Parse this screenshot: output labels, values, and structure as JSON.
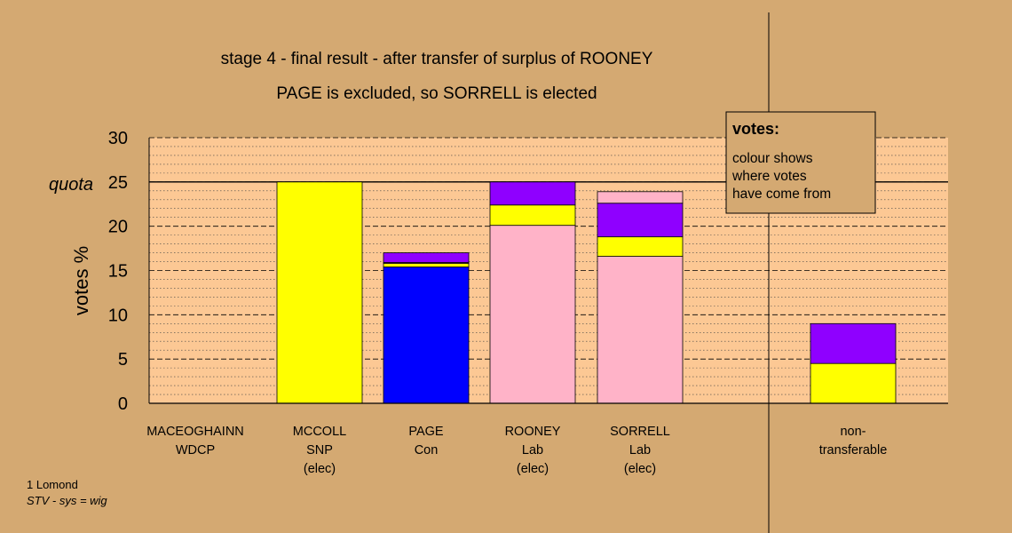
{
  "colors": {
    "background": "#d4a972",
    "plot_area": "#fcc894",
    "yellow": "#ffff00",
    "blue": "#0000ff",
    "purple": "#8f00ff",
    "pink": "#ffb3c8"
  },
  "chart_data": {
    "type": "bar",
    "stacked": true,
    "title": "stage 4 - final result - after transfer of surplus of ROONEY",
    "subtitle": "PAGE is excluded, so SORRELL is elected",
    "ylabel": "votes %",
    "ylim": [
      0,
      30
    ],
    "yticks": [
      0,
      5,
      10,
      15,
      20,
      25,
      30
    ],
    "quota": 25,
    "quota_label": "quota",
    "grid": "dashed major lines every 5, dotted minor lines every 1",
    "categories": [
      {
        "lines": [
          "MACEOGHAINN",
          "WDCP"
        ]
      },
      {
        "lines": [
          "MCCOLL",
          "SNP",
          "(elec)"
        ]
      },
      {
        "lines": [
          "PAGE",
          "Con"
        ]
      },
      {
        "lines": [
          "ROONEY",
          "Lab",
          "(elec)"
        ]
      },
      {
        "lines": [
          "SORRELL",
          "Lab",
          "(elec)"
        ]
      },
      {
        "lines": [
          "non-",
          "transferable"
        ]
      }
    ],
    "bars": [
      {
        "segments": []
      },
      {
        "segments": [
          {
            "color": "yellow",
            "value": 25.0
          }
        ]
      },
      {
        "segments": [
          {
            "color": "blue",
            "value": 15.4
          },
          {
            "color": "yellow",
            "value": 0.4
          },
          {
            "color": "pink",
            "value": 0.1
          },
          {
            "color": "purple",
            "value": 1.1
          }
        ]
      },
      {
        "segments": [
          {
            "color": "pink",
            "value": 20.1
          },
          {
            "color": "yellow",
            "value": 2.3
          },
          {
            "color": "purple",
            "value": 2.6
          }
        ]
      },
      {
        "segments": [
          {
            "color": "pink",
            "value": 16.6
          },
          {
            "color": "yellow",
            "value": 2.2
          },
          {
            "color": "purple",
            "value": 3.8
          },
          {
            "color": "pink",
            "value": 1.3
          }
        ]
      },
      {
        "segments": [
          {
            "color": "yellow",
            "value": 4.5
          },
          {
            "color": "purple",
            "value": 4.5
          }
        ]
      }
    ],
    "legend": {
      "position": "top-right",
      "title": "votes:",
      "lines": [
        "colour shows",
        "where votes",
        "have come from"
      ]
    }
  },
  "footer": {
    "line1": "1 Lomond",
    "line2": "STV - sys = wig"
  }
}
